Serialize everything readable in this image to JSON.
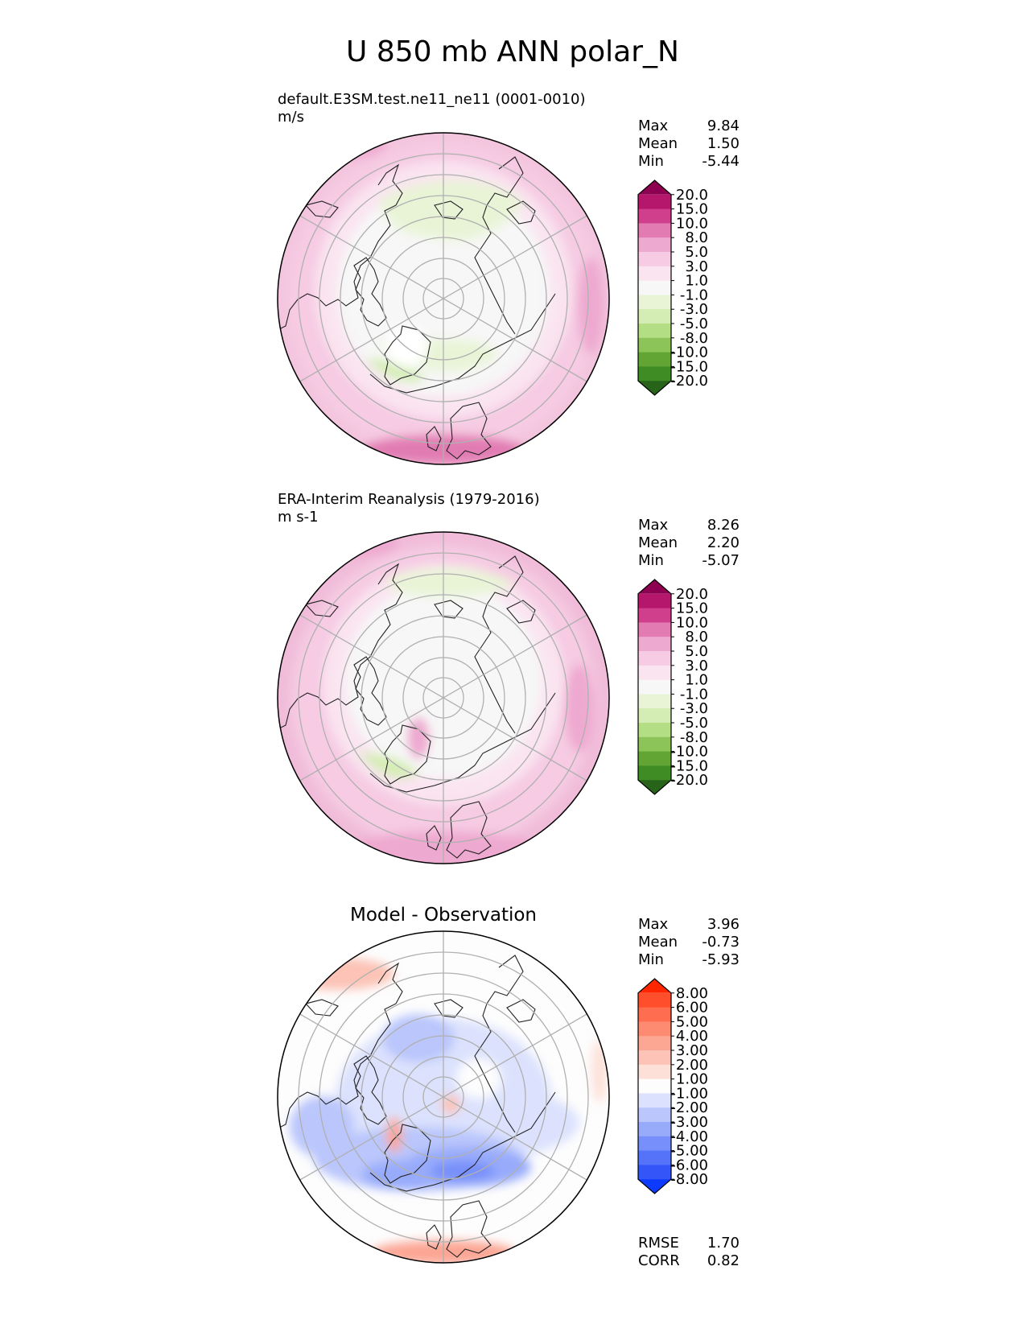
{
  "figure_title": "U 850 mb ANN polar_N",
  "stat_labels": {
    "max": "Max",
    "mean": "Mean",
    "min": "Min",
    "rmse": "RMSE",
    "corr": "CORR"
  },
  "chart_data": [
    {
      "type": "contour-map",
      "projection": "north-polar-stereographic",
      "title_left": "default.E3SM.test.ne11_ne11 (0001-0010)",
      "units": "m/s",
      "stats": {
        "max": "9.84",
        "mean": "1.50",
        "min": "-5.44"
      },
      "colorbar": {
        "levels": [
          "20.0",
          "15.0",
          "10.0",
          "8.0",
          "5.0",
          "3.0",
          "1.0",
          "-1.0",
          "-3.0",
          "-5.0",
          "-8.0",
          "-10.0",
          "-15.0",
          "-20.0"
        ],
        "colors": [
          "#8e0152",
          "#b5176d",
          "#d03f8b",
          "#e17bb2",
          "#eea9d0",
          "#f6cbe3",
          "#fae4f0",
          "#f7f7f7",
          "#e9f4d7",
          "#d4edb4",
          "#b4de84",
          "#8cc459",
          "#62a534",
          "#3f8b24",
          "#276419"
        ],
        "extend": "both"
      },
      "dominant_field": "weak easterlies (green) over the polar cap, westerlies (pink) over mid-latitudes"
    },
    {
      "type": "contour-map",
      "projection": "north-polar-stereographic",
      "title_left": "ERA-Interim Reanalysis (1979-2016)",
      "units": "m s-1",
      "stats": {
        "max": "8.26",
        "mean": "2.20",
        "min": "-5.07"
      },
      "colorbar": {
        "levels": [
          "20.0",
          "15.0",
          "10.0",
          "8.0",
          "5.0",
          "3.0",
          "1.0",
          "-1.0",
          "-3.0",
          "-5.0",
          "-8.0",
          "-10.0",
          "-15.0",
          "-20.0"
        ],
        "colors": [
          "#8e0152",
          "#b5176d",
          "#d03f8b",
          "#e17bb2",
          "#eea9d0",
          "#f6cbe3",
          "#fae4f0",
          "#f7f7f7",
          "#e9f4d7",
          "#d4edb4",
          "#b4de84",
          "#8cc459",
          "#62a534",
          "#3f8b24",
          "#276419"
        ],
        "extend": "both"
      }
    },
    {
      "type": "contour-map",
      "projection": "north-polar-stereographic",
      "title_center": "Model - Observation",
      "stats": {
        "max": "3.96",
        "mean": "-0.73",
        "min": "-5.93"
      },
      "metrics": {
        "rmse": "1.70",
        "corr": "0.82"
      },
      "colorbar": {
        "levels": [
          "8.00",
          "6.00",
          "5.00",
          "4.00",
          "3.00",
          "2.00",
          "1.00",
          "-1.00",
          "-2.00",
          "-3.00",
          "-4.00",
          "-5.00",
          "-6.00",
          "-8.00"
        ],
        "colors": [
          "#ff2600",
          "#ff4e2c",
          "#fe6d4f",
          "#fd8b72",
          "#fca694",
          "#fcc3b6",
          "#fde1d9",
          "#fdfdfd",
          "#dce2fd",
          "#bac6fc",
          "#98abfb",
          "#778ffa",
          "#5573f9",
          "#3456f8",
          "#0c3bfe"
        ],
        "extend": "both"
      }
    }
  ]
}
